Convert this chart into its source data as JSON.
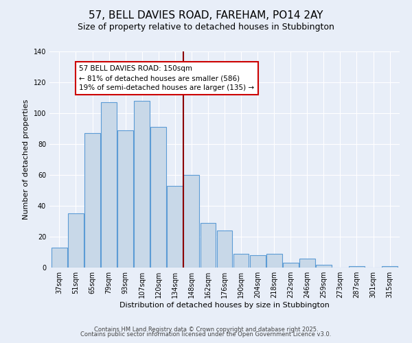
{
  "title": "57, BELL DAVIES ROAD, FAREHAM, PO14 2AY",
  "subtitle": "Size of property relative to detached houses in Stubbington",
  "xlabel": "Distribution of detached houses by size in Stubbington",
  "ylabel": "Number of detached properties",
  "bar_labels": [
    "37sqm",
    "51sqm",
    "65sqm",
    "79sqm",
    "93sqm",
    "107sqm",
    "120sqm",
    "134sqm",
    "148sqm",
    "162sqm",
    "176sqm",
    "190sqm",
    "204sqm",
    "218sqm",
    "232sqm",
    "246sqm",
    "259sqm",
    "273sqm",
    "287sqm",
    "301sqm",
    "315sqm"
  ],
  "bar_heights": [
    13,
    35,
    87,
    107,
    89,
    108,
    91,
    53,
    60,
    29,
    24,
    9,
    8,
    9,
    3,
    6,
    2,
    0,
    1,
    0,
    1
  ],
  "bar_color": "#c8d8e8",
  "bar_edge_color": "#5b9bd5",
  "vline_color": "#8b0000",
  "annotation_text": "57 BELL DAVIES ROAD: 150sqm\n← 81% of detached houses are smaller (586)\n19% of semi-detached houses are larger (135) →",
  "annotation_box_color": "#ffffff",
  "annotation_box_edge": "#cc0000",
  "ylim": [
    0,
    140
  ],
  "yticks": [
    0,
    20,
    40,
    60,
    80,
    100,
    120,
    140
  ],
  "background_color": "#e8eef8",
  "plot_background": "#e8eef8",
  "footer_line1": "Contains HM Land Registry data © Crown copyright and database right 2025.",
  "footer_line2": "Contains public sector information licensed under the Open Government Licence v3.0.",
  "title_fontsize": 11,
  "subtitle_fontsize": 9,
  "axis_label_fontsize": 8,
  "tick_fontsize": 7,
  "annotation_fontsize": 7.5,
  "footer_fontsize": 6
}
